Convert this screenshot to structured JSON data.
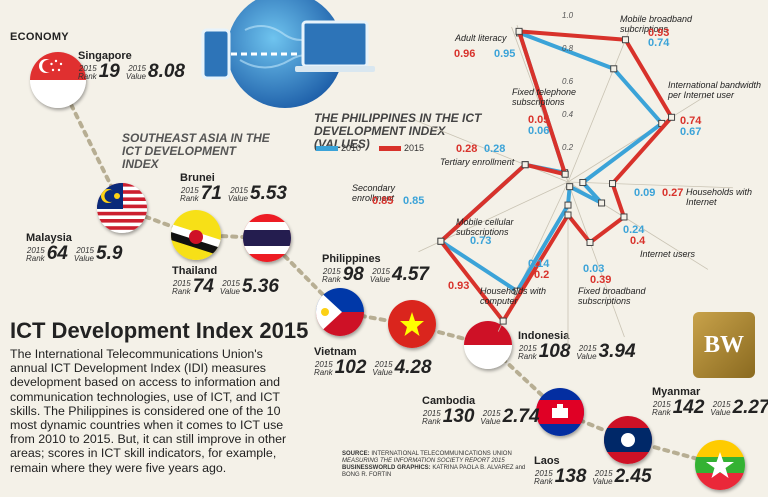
{
  "header": {
    "economy_label": "ECONOMY"
  },
  "sea_title": "SOUTHEAST ASIA IN THE ICT DEVELOPMENT INDEX",
  "main_title": "ICT Development Index 2015",
  "body_text": "The International Telecommunications Union's annual ICT Development Index (IDI) measures development based on access to information and communication technologies, use of ICT, and ICT skills. The Philippines is considered one of the 10 most dynamic countries when it comes to ICT use from 2010 to 2015. But, it can still improve in other areas; scores in ICT skill indicators, for example, remain where they were five years ago.",
  "labels": {
    "year": "2015",
    "rank": "Rank",
    "value": "Value"
  },
  "countries": [
    {
      "name": "Singapore",
      "rank": "19",
      "value": "8.08"
    },
    {
      "name": "Malaysia",
      "rank": "64",
      "value": "5.9"
    },
    {
      "name": "Brunei",
      "rank": "71",
      "value": "5.53"
    },
    {
      "name": "Thailand",
      "rank": "74",
      "value": "5.36"
    },
    {
      "name": "Philippines",
      "rank": "98",
      "value": "4.57"
    },
    {
      "name": "Vietnam",
      "rank": "102",
      "value": "4.28"
    },
    {
      "name": "Indonesia",
      "rank": "108",
      "value": "3.94"
    },
    {
      "name": "Cambodia",
      "rank": "130",
      "value": "2.74"
    },
    {
      "name": "Laos",
      "rank": "138",
      "value": "2.45"
    },
    {
      "name": "Myanmar",
      "rank": "142",
      "value": "2.27"
    }
  ],
  "colors": {
    "blue": "#3ba3d8",
    "red": "#d8322b",
    "background": "#f4f1e8"
  },
  "chart_data": {
    "type": "radar",
    "title": "THE PHILIPPINES IN THE ICT DEVELOPMENT INDEX (VALUES)",
    "axis_ticks": [
      "1.0",
      "0.8",
      "0.6",
      "0.4",
      "0.2"
    ],
    "categories": [
      "Adult literacy",
      "Mobile broadband subcriptions",
      "International bandwidth per Internet user",
      "Households with Internet",
      "Internet users",
      "Fixed broadband subscriptions",
      "Households with computer",
      "Mobile cellular subscriptions",
      "Secondary enrollment",
      "Tertiary enrollment",
      "Fixed telephone subscriptions"
    ],
    "series": [
      {
        "name": "2010",
        "values": [
          0.95,
          0.74,
          0.67,
          0.09,
          0.24,
          0.03,
          0.14,
          0.73,
          0.85,
          0.28,
          0.06
        ]
      },
      {
        "name": "2015",
        "values": [
          0.96,
          0.93,
          0.74,
          0.27,
          0.4,
          0.39,
          0.2,
          0.93,
          0.85,
          0.28,
          0.05
        ]
      }
    ],
    "value_labels": {
      "2010": [
        "0.95",
        "0.74",
        "0.67",
        "0.09",
        "0.24",
        "0.03",
        "0.14",
        "0.73",
        "0.85",
        "0.28",
        "0.06"
      ],
      "2015": [
        "0.96",
        "0.93",
        "0.74",
        "0.27",
        "0.4",
        "0.39",
        "0.2",
        "0.93",
        "0.85",
        "0.28",
        "0.05"
      ]
    }
  },
  "source": {
    "label": "SOURCE:",
    "line1": "INTERNATIONAL TELECOMMUNICATIONS UNION",
    "line2": "MEASURING THE INFORMATION SOCIETY REPORT 2015",
    "graphics_label": "BUSINESSWORLD GRAPHICS:",
    "graphics_credit": "KATRINA PAOLA B. ALVAREZ and BONG R. FORTIN"
  },
  "logo_text": "BW"
}
